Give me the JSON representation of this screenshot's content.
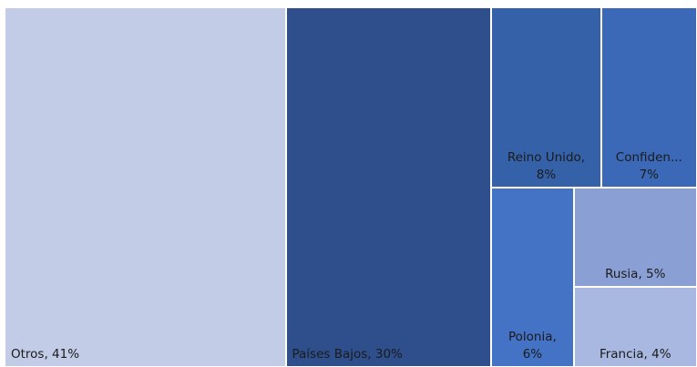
{
  "chart_data": {
    "type": "treemap",
    "labels": [
      "Otros, 41%",
      "Países Bajos, 30%",
      "Reino Unido, 8%",
      "Confiden... 7%",
      "Polonia, 6%",
      "Rusia, 5%",
      "Francia, 4%"
    ],
    "values": [
      41,
      30,
      8,
      7,
      6,
      5,
      4
    ],
    "colors": [
      "#c2cce6",
      "#2e4f8c",
      "#3461a8",
      "#3b69b8",
      "#4472c4",
      "#8aa0d4",
      "#a9b8e0"
    ]
  }
}
